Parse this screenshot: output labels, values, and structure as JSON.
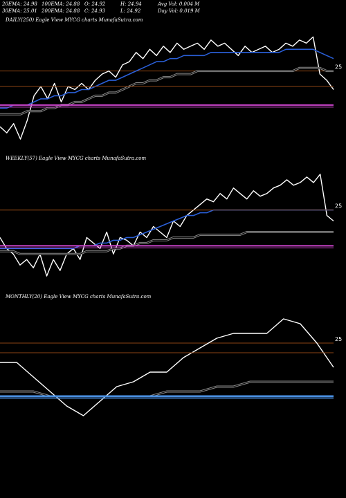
{
  "header": {
    "ema20": "20EMA: 24.98",
    "ema100": "100EMA: 24.88",
    "open": "O: 24.92",
    "high": "H: 24.94",
    "avgvol": "Avg Vol: 0.004  M",
    "ema30": "30EMA: 25.01",
    "ema200": "200EMA: 24.88",
    "close": "C: 24.93",
    "low": "L: 24.92",
    "dayvol": "Day Vol: 0.019 M"
  },
  "colors": {
    "price": "#ffffff",
    "ema_fast": "#2a5fd8",
    "ema_slow": "#888888",
    "resistance": "#8b4513",
    "support": "#cc44cc",
    "monthly_band": "#4a90e2"
  },
  "chart_data": [
    {
      "type": "line",
      "panel_label": "DAILY(250) Eagle   View  MYCG charts MunafaSutra.com",
      "reference_level": 25,
      "reference_label": "25",
      "series": [
        {
          "role": "price",
          "values": [
            24.82,
            24.8,
            24.83,
            24.78,
            24.84,
            24.92,
            24.95,
            24.91,
            24.96,
            24.9,
            24.95,
            24.94,
            24.96,
            24.94,
            24.97,
            24.99,
            25.0,
            24.98,
            25.02,
            25.03,
            25.06,
            25.04,
            25.07,
            25.05,
            25.08,
            25.06,
            25.09,
            25.07,
            25.08,
            25.09,
            25.07,
            25.1,
            25.08,
            25.09,
            25.07,
            25.05,
            25.08,
            25.06,
            25.07,
            25.08,
            25.06,
            25.07,
            25.09,
            25.08,
            25.1,
            25.09,
            25.11,
            24.99,
            24.97,
            24.94
          ]
        },
        {
          "role": "ema_fast",
          "values": [
            24.88,
            24.88,
            24.89,
            24.89,
            24.89,
            24.9,
            24.91,
            24.91,
            24.92,
            24.92,
            24.93,
            24.93,
            24.94,
            24.94,
            24.95,
            24.96,
            24.97,
            24.97,
            24.98,
            24.99,
            25.0,
            25.01,
            25.02,
            25.03,
            25.03,
            25.04,
            25.04,
            25.05,
            25.05,
            25.05,
            25.05,
            25.06,
            25.06,
            25.06,
            25.06,
            25.06,
            25.06,
            25.06,
            25.06,
            25.06,
            25.06,
            25.06,
            25.07,
            25.07,
            25.07,
            25.07,
            25.07,
            25.06,
            25.05,
            25.04
          ]
        },
        {
          "role": "ema_slow",
          "values": [
            24.86,
            24.86,
            24.86,
            24.86,
            24.87,
            24.87,
            24.87,
            24.88,
            24.88,
            24.89,
            24.89,
            24.9,
            24.9,
            24.91,
            24.92,
            24.92,
            24.93,
            24.93,
            24.94,
            24.95,
            24.96,
            24.96,
            24.97,
            24.97,
            24.98,
            24.98,
            24.99,
            24.99,
            24.99,
            25.0,
            25.0,
            25.0,
            25.0,
            25.0,
            25.0,
            25.0,
            25.0,
            25.0,
            25.0,
            25.0,
            25.0,
            25.0,
            25.0,
            25.0,
            25.01,
            25.01,
            25.01,
            25.01,
            25.0,
            25.0
          ]
        },
        {
          "role": "resistance",
          "values": [
            24.95,
            24.95
          ]
        },
        {
          "role": "support",
          "values": [
            24.89,
            24.89
          ]
        }
      ]
    },
    {
      "type": "line",
      "panel_label": "WEEKLY(57) Eagle   View  MYCG charts MunafaSutra.com",
      "reference_level": 25,
      "reference_label": "25",
      "series": [
        {
          "role": "price",
          "values": [
            24.9,
            24.86,
            24.84,
            24.8,
            24.82,
            24.79,
            24.84,
            24.76,
            24.82,
            24.78,
            24.84,
            24.86,
            24.82,
            24.9,
            24.88,
            24.86,
            24.92,
            24.84,
            24.9,
            24.89,
            24.87,
            24.92,
            24.9,
            24.94,
            24.92,
            24.9,
            24.96,
            24.94,
            24.98,
            25.0,
            25.02,
            25.04,
            25.03,
            25.06,
            25.04,
            25.08,
            25.06,
            25.04,
            25.07,
            25.05,
            25.06,
            25.08,
            25.09,
            25.11,
            25.09,
            25.1,
            25.12,
            25.1,
            25.13,
            24.98,
            24.96
          ]
        },
        {
          "role": "ema_fast",
          "values": [
            24.86,
            24.86,
            24.86,
            24.86,
            24.86,
            24.86,
            24.86,
            24.86,
            24.86,
            24.86,
            24.86,
            24.86,
            24.87,
            24.87,
            24.87,
            24.88,
            24.88,
            24.89,
            24.89,
            24.9,
            24.9,
            24.91,
            24.92,
            24.93,
            24.94,
            24.95,
            24.96,
            24.97,
            24.98,
            24.98,
            24.99,
            24.99,
            25.0,
            25.0,
            25.0,
            25.0,
            25.0,
            25.0,
            25.0,
            25.0,
            25.0,
            25.0,
            25.0,
            25.0,
            25.0,
            25.0,
            25.0,
            25.0,
            25.0,
            25.0,
            25.0
          ]
        },
        {
          "role": "ema_slow",
          "values": [
            24.85,
            24.85,
            24.85,
            24.84,
            24.84,
            24.84,
            24.84,
            24.84,
            24.84,
            24.84,
            24.84,
            24.84,
            24.84,
            24.85,
            24.85,
            24.85,
            24.85,
            24.86,
            24.86,
            24.87,
            24.87,
            24.88,
            24.88,
            24.89,
            24.89,
            24.89,
            24.9,
            24.9,
            24.9,
            24.9,
            24.91,
            24.91,
            24.91,
            24.91,
            24.91,
            24.91,
            24.91,
            24.92,
            24.92,
            24.92,
            24.92,
            24.92,
            24.92,
            24.92,
            24.92,
            24.92,
            24.92,
            24.92,
            24.92,
            24.92,
            24.92
          ]
        },
        {
          "role": "resistance",
          "values": [
            25.0,
            25.0
          ]
        },
        {
          "role": "support",
          "values": [
            24.87,
            24.87
          ]
        }
      ]
    },
    {
      "type": "line",
      "panel_label": "MONTHLY(20) Eagle   View  MYCG charts MunafaSutra.com",
      "reference_level": 25,
      "reference_label": "25",
      "series": [
        {
          "role": "price",
          "values": [
            24.96,
            24.96,
            24.93,
            24.9,
            24.87,
            24.85,
            24.88,
            24.91,
            24.92,
            24.94,
            24.94,
            24.97,
            24.99,
            25.01,
            25.02,
            25.02,
            25.02,
            25.05,
            25.04,
            25.0,
            24.95
          ]
        },
        {
          "role": "ema_slow",
          "values": [
            24.9,
            24.9,
            24.9,
            24.89,
            24.89,
            24.89,
            24.89,
            24.89,
            24.89,
            24.89,
            24.9,
            24.9,
            24.9,
            24.91,
            24.91,
            24.92,
            24.92,
            24.92,
            24.92,
            24.92,
            24.92
          ]
        },
        {
          "role": "resistance",
          "values": [
            24.98,
            24.98
          ]
        },
        {
          "role": "support",
          "values": [
            24.89,
            24.89
          ]
        }
      ]
    }
  ]
}
